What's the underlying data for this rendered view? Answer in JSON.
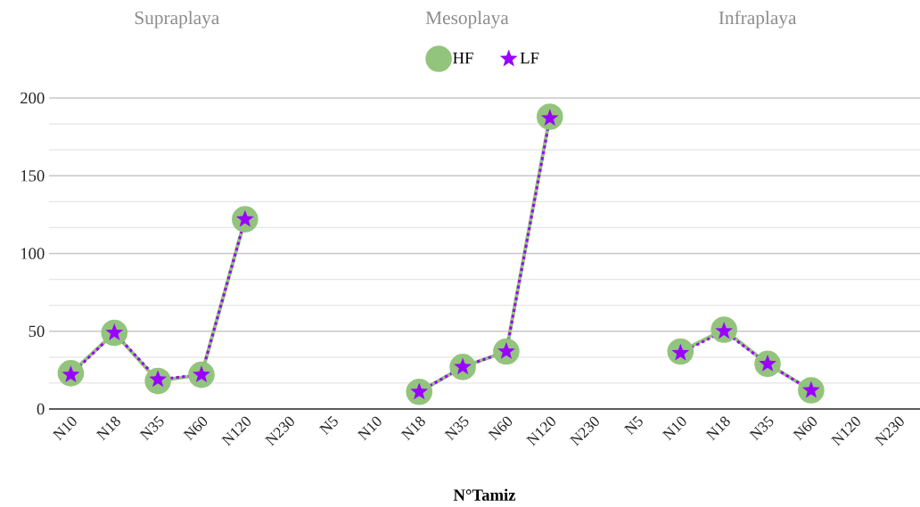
{
  "chart_data": {
    "type": "line",
    "xlabel": "N°Tamiz",
    "categories": [
      "N10",
      "N18",
      "N35",
      "N60",
      "N120",
      "N230",
      "N5",
      "N10",
      "N18",
      "N35",
      "N60",
      "N120",
      "N230",
      "N5",
      "N10",
      "N18",
      "N35",
      "N60",
      "N120",
      "N230"
    ],
    "series": [
      {
        "name": "HF",
        "color": "#93c47d",
        "marker": "circle",
        "line_style": "solid",
        "values": [
          23,
          49,
          18,
          22,
          122,
          null,
          null,
          null,
          11,
          27,
          37,
          188,
          null,
          null,
          37,
          51,
          29,
          12,
          null,
          null
        ]
      },
      {
        "name": "LF",
        "color": "#9900ff",
        "marker": "star",
        "line_style": "dotted",
        "values": [
          22,
          49,
          19,
          22,
          122,
          null,
          null,
          null,
          11,
          27,
          37,
          187,
          null,
          null,
          36,
          50,
          29,
          12,
          null,
          null
        ]
      }
    ],
    "annotations": [
      "Supraplaya",
      "Mesoplaya",
      "Infraplaya"
    ],
    "ylim": [
      0,
      200
    ],
    "yticks": [
      0,
      50,
      100,
      150,
      200
    ],
    "grid": "y",
    "legend": "top"
  }
}
